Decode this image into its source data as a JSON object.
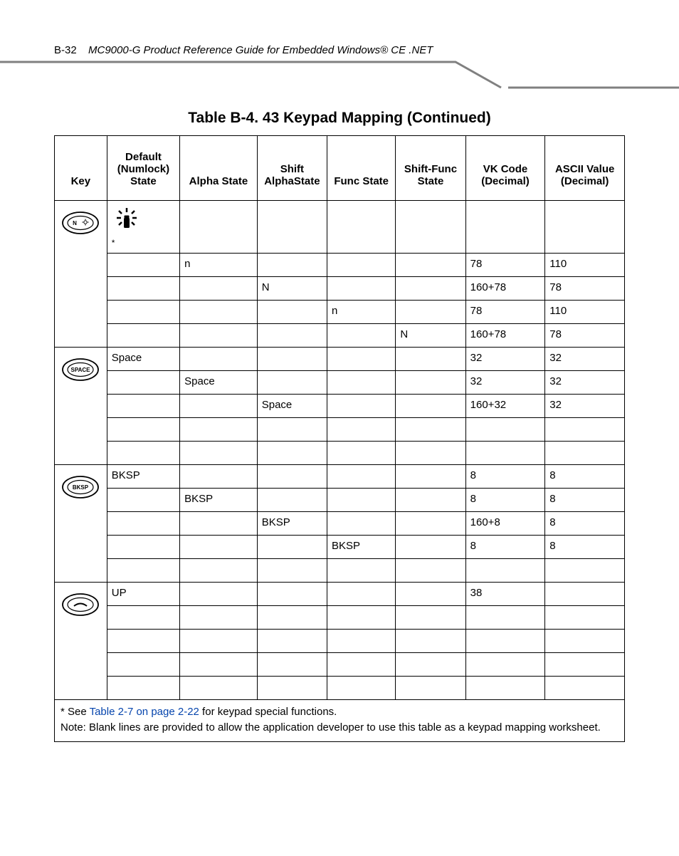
{
  "colors": {
    "text": "#000000",
    "background": "#ffffff",
    "line": "#808080",
    "link": "#0645ad"
  },
  "header": {
    "page_number": "B-32",
    "doc_title": "MC9000-G Product Reference Guide for Embedded Windows® CE .NET"
  },
  "table": {
    "title": "Table B-4. 43 Keypad Mapping (Continued)",
    "columns": [
      "Key",
      "Default (Numlock) State",
      "Alpha State",
      "Shift AlphaState",
      "Func State",
      "Shift-Func State",
      "VK Code (Decimal)",
      "ASCII Value (Decimal)"
    ],
    "groups": [
      {
        "key_label": "N",
        "key_type": "n-lamp",
        "rows": [
          {
            "def": "*",
            "alpha": "",
            "shalp": "",
            "func": "",
            "shf": "",
            "vk": "",
            "asc": "",
            "icon": "lamp"
          },
          {
            "def": "",
            "alpha": "n",
            "shalp": "",
            "func": "",
            "shf": "",
            "vk": "78",
            "asc": "110"
          },
          {
            "def": "",
            "alpha": "",
            "shalp": "N",
            "func": "",
            "shf": "",
            "vk": "160+78",
            "asc": "78"
          },
          {
            "def": "",
            "alpha": "",
            "shalp": "",
            "func": "n",
            "shf": "",
            "vk": "78",
            "asc": "110"
          },
          {
            "def": "",
            "alpha": "",
            "shalp": "",
            "func": "",
            "shf": "N",
            "vk": "160+78",
            "asc": "78"
          }
        ]
      },
      {
        "key_label": "SPACE",
        "key_type": "space",
        "rows": [
          {
            "def": "Space",
            "alpha": "",
            "shalp": "",
            "func": "",
            "shf": "",
            "vk": "32",
            "asc": "32"
          },
          {
            "def": "",
            "alpha": "Space",
            "shalp": "",
            "func": "",
            "shf": "",
            "vk": "32",
            "asc": "32"
          },
          {
            "def": "",
            "alpha": "",
            "shalp": "Space",
            "func": "",
            "shf": "",
            "vk": "160+32",
            "asc": "32"
          },
          {
            "def": "",
            "alpha": "",
            "shalp": "",
            "func": "",
            "shf": "",
            "vk": "",
            "asc": ""
          },
          {
            "def": "",
            "alpha": "",
            "shalp": "",
            "func": "",
            "shf": "",
            "vk": "",
            "asc": ""
          }
        ]
      },
      {
        "key_label": "BKSP",
        "key_type": "bksp",
        "rows": [
          {
            "def": "BKSP",
            "alpha": "",
            "shalp": "",
            "func": "",
            "shf": "",
            "vk": "8",
            "asc": "8"
          },
          {
            "def": "",
            "alpha": "BKSP",
            "shalp": "",
            "func": "",
            "shf": "",
            "vk": "8",
            "asc": "8"
          },
          {
            "def": "",
            "alpha": "",
            "shalp": "BKSP",
            "func": "",
            "shf": "",
            "vk": "160+8",
            "asc": "8"
          },
          {
            "def": "",
            "alpha": "",
            "shalp": "",
            "func": "BKSP",
            "shf": "",
            "vk": "8",
            "asc": "8"
          },
          {
            "def": "",
            "alpha": "",
            "shalp": "",
            "func": "",
            "shf": "",
            "vk": "",
            "asc": ""
          }
        ]
      },
      {
        "key_label": "",
        "key_type": "up",
        "rows": [
          {
            "def": "UP",
            "alpha": "",
            "shalp": "",
            "func": "",
            "shf": "",
            "vk": "38",
            "asc": ""
          },
          {
            "def": "",
            "alpha": "",
            "shalp": "",
            "func": "",
            "shf": "",
            "vk": "",
            "asc": ""
          },
          {
            "def": "",
            "alpha": "",
            "shalp": "",
            "func": "",
            "shf": "",
            "vk": "",
            "asc": ""
          },
          {
            "def": "",
            "alpha": "",
            "shalp": "",
            "func": "",
            "shf": "",
            "vk": "",
            "asc": ""
          },
          {
            "def": "",
            "alpha": "",
            "shalp": "",
            "func": "",
            "shf": "",
            "vk": "",
            "asc": ""
          }
        ]
      }
    ],
    "footnote": {
      "prefix": "* See ",
      "link_text": "Table 2-7 on page 2-22",
      "suffix": " for keypad special functions.",
      "note": "Note: Blank lines are provided to allow the application developer to use this table as a keypad mapping worksheet."
    }
  }
}
